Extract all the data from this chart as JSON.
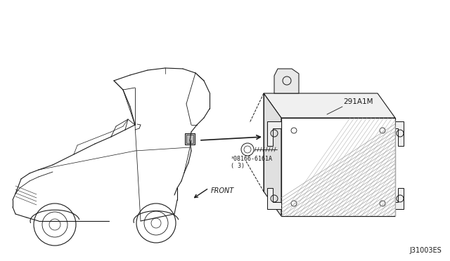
{
  "bg_color": "#ffffff",
  "line_color": "#1a1a1a",
  "fig_width": 6.4,
  "fig_height": 3.72,
  "dpi": 100,
  "diagram_id": "J31003ES",
  "part_number_1": "291A1M",
  "part_label_1": "³08166-6161A\n( 3)",
  "front_label": "FRONT"
}
